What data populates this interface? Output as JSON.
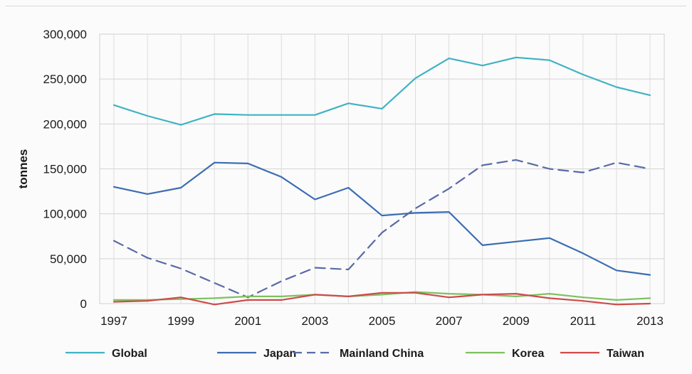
{
  "chart_data": {
    "type": "line",
    "title": "",
    "xlabel": "",
    "ylabel": "tonnes",
    "x": [
      1997,
      1998,
      1999,
      2000,
      2001,
      2002,
      2003,
      2004,
      2005,
      2006,
      2007,
      2008,
      2009,
      2010,
      2011,
      2012,
      2013
    ],
    "x_tick_labels": [
      "1997",
      "1999",
      "2001",
      "2003",
      "2005",
      "2007",
      "2009",
      "2011",
      "2013"
    ],
    "y_tick_labels": [
      "0",
      "50,000",
      "100,000",
      "150,000",
      "200,000",
      "250,000",
      "300,000"
    ],
    "ylim": [
      0,
      300000
    ],
    "grid": "vertical and horizontal gridlines",
    "legend_position": "bottom",
    "series": [
      {
        "name": "Global",
        "color": "#3fb3c3",
        "dash": "solid",
        "values": [
          221000,
          209000,
          199000,
          211000,
          210000,
          210000,
          210000,
          223000,
          217000,
          251000,
          273000,
          265000,
          274000,
          271000,
          255000,
          241000,
          232000
        ]
      },
      {
        "name": "Japan",
        "color": "#3b6db3",
        "dash": "solid",
        "values": [
          130000,
          122000,
          129000,
          157000,
          156000,
          141000,
          116000,
          129000,
          98000,
          101000,
          102000,
          65000,
          69000,
          73000,
          56000,
          37000,
          32000
        ]
      },
      {
        "name": "Mainland China",
        "color": "#5a6aa8",
        "dash": "dashed",
        "values": [
          70000,
          51000,
          39000,
          23000,
          7000,
          25000,
          40000,
          38000,
          79000,
          106000,
          128000,
          154000,
          160000,
          150000,
          146000,
          157000,
          150000
        ]
      },
      {
        "name": "Korea",
        "color": "#7cc15f",
        "dash": "solid",
        "values": [
          4000,
          4000,
          5000,
          6000,
          8000,
          8000,
          10000,
          8000,
          10000,
          13000,
          11000,
          10000,
          8000,
          11000,
          7000,
          4000,
          6000
        ]
      },
      {
        "name": "Taiwan",
        "color": "#cf4a4a",
        "dash": "solid",
        "values": [
          2000,
          3000,
          7000,
          -1000,
          4000,
          4000,
          10000,
          8000,
          12000,
          12000,
          7000,
          10000,
          11000,
          6000,
          3000,
          -1000,
          0
        ]
      }
    ]
  }
}
